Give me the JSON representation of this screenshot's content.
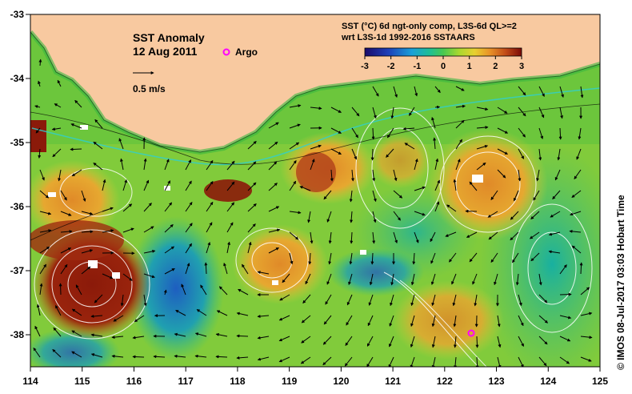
{
  "map": {
    "title": "SST Anomaly",
    "date": "12 Aug 2011",
    "argo_label": "Argo",
    "velocity_scale_label": "0.5 m/s",
    "colorbar_title_line1": "SST (°C) 6d ngt-only comp, L3S-6d QL>=2",
    "colorbar_title_line2": "wrt L3S-1d 1992-2016 SSTAARS",
    "colorbar_ticks": [
      "-3",
      "-2",
      "-1",
      "0",
      "1",
      "2",
      "3"
    ],
    "colorbar_range": [
      -3,
      3
    ],
    "x_ticks": [
      "114",
      "115",
      "116",
      "117",
      "118",
      "119",
      "120",
      "121",
      "122",
      "123",
      "124",
      "125"
    ],
    "y_ticks": [
      "-33",
      "-34",
      "-35",
      "-36",
      "-37",
      "-38"
    ],
    "credit": "©  IMOS 08-Jul-2017 03:03 Hobart Time",
    "colors": {
      "land": "#f8c9a0",
      "anomaly_high": "#8b1a0a",
      "anomaly_warm": "#e0902a",
      "anomaly_mid": "#8fd23a",
      "anomaly_cool": "#1fb59a",
      "anomaly_low": "#2040b0",
      "argo_marker": "#ff00ff"
    }
  }
}
